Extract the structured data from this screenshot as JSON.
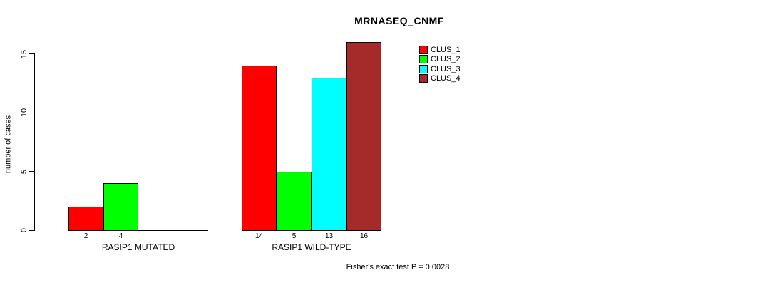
{
  "title": "MRNASEQ_CNMF",
  "footer": "Fisher's exact test P = 0.0028",
  "chart_data": {
    "type": "bar",
    "title": "MRNASEQ_CNMF",
    "xlabel": "",
    "ylabel": "number of cases",
    "ylim": [
      0,
      16
    ],
    "yticks": [
      "0",
      "5",
      "10",
      "15"
    ],
    "grid": false,
    "legend_position": "top-right",
    "legend": [
      {
        "label": "CLUS_1",
        "color": "#FF0000"
      },
      {
        "label": "CLUS_2",
        "color": "#00FF00"
      },
      {
        "label": "CLUS_3",
        "color": "#00FFFF"
      },
      {
        "label": "CLUS_4",
        "color": "#A52A2A"
      }
    ],
    "groups": [
      {
        "label": "RASIP1 MUTATED",
        "series": [
          "CLUS_1",
          "CLUS_2",
          "CLUS_3",
          "CLUS_4"
        ],
        "values": [
          2,
          4,
          0,
          0
        ],
        "bar_labels": [
          "2",
          "4",
          "",
          ""
        ]
      },
      {
        "label": "RASIP1 WILD-TYPE",
        "series": [
          "CLUS_1",
          "CLUS_2",
          "CLUS_3",
          "CLUS_4"
        ],
        "values": [
          14,
          5,
          13,
          16
        ],
        "bar_labels": [
          "14",
          "5",
          "13",
          "16"
        ]
      }
    ],
    "annotation": "Fisher's exact test P = 0.0028"
  }
}
